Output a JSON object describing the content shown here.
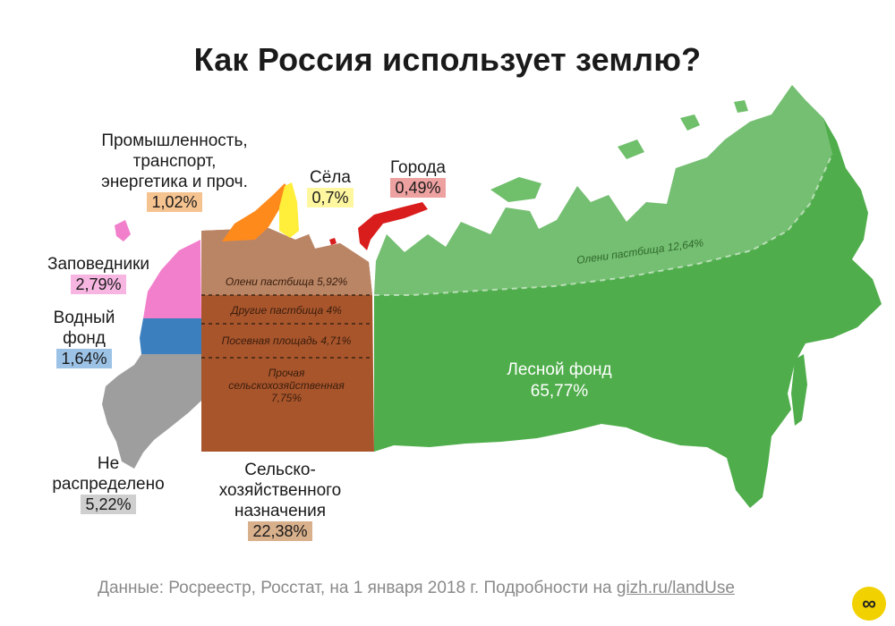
{
  "title": "Как Россия использует землю?",
  "regions": {
    "industry": {
      "label": "Промышленность,\nтранспорт,\nэнергетика и проч.",
      "percent": "1,02%",
      "color": "#ff8a1c",
      "badge": "#f5c390"
    },
    "villages": {
      "label": "Сёла",
      "percent": "0,7%",
      "color": "#ffee3a",
      "badge": "#fff7a0"
    },
    "cities": {
      "label": "Города",
      "percent": "0,49%",
      "color": "#d91d1d",
      "badge": "#eea1a1"
    },
    "reserves": {
      "label": "Заповедники",
      "percent": "2,79%",
      "color": "#f27fcb",
      "badge": "#f7b6e2"
    },
    "water": {
      "label": "Водный\nфонд",
      "percent": "1,64%",
      "color": "#3b7fbf",
      "badge": "#9cc2e6"
    },
    "unallocated": {
      "label": "Не\nраспределено",
      "percent": "5,22%",
      "color": "#9e9e9e",
      "badge": "#cfcfcf"
    },
    "agriculture": {
      "label": "Сельско-\nхозяйственного\nназначения",
      "percent": "22,38%",
      "color": "#a8552c",
      "badge": "#d9b08c"
    },
    "forest": {
      "label": "Лесной фонд",
      "percent": "65,77%",
      "color": "#4fad4b"
    }
  },
  "sub_labels": {
    "reindeer_west": "Олени пастбища 5,92%",
    "other_pasture": "Другие пастбища 4%",
    "sown_area": "Посевная площадь 4,71%",
    "other_agri": "Прочая\nсельскохозяйственная\n7,75%",
    "reindeer_east": "Олени пастбища 12,64%"
  },
  "footer": {
    "text": "Данные: Росреестр, Росстат, на 1 января 2018 г. Подробности на ",
    "link": "gizh.ru/landUse"
  },
  "logo": "∞"
}
